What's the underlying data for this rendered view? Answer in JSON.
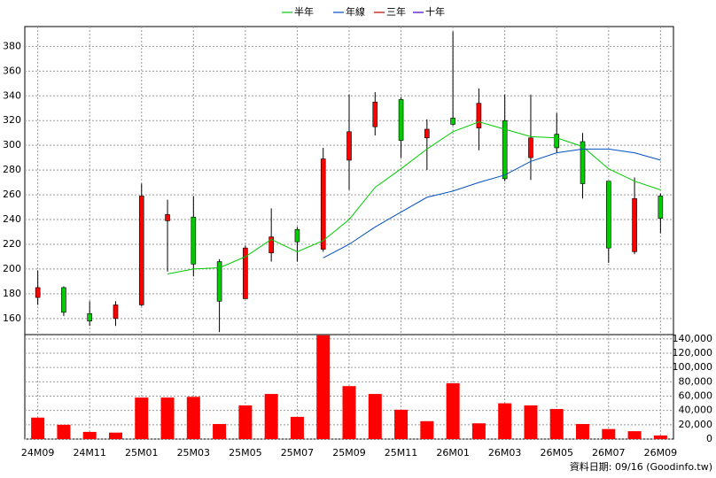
{
  "chart_data": {
    "type": "candlestick",
    "categories": [
      "24M09",
      null,
      "24M11",
      null,
      "25M01",
      null,
      "25M03",
      null,
      "25M05",
      null,
      "25M07",
      null,
      "25M09",
      null,
      "25M11",
      null,
      "26M01",
      null,
      "26M03",
      null,
      "26M05",
      null,
      "26M07",
      null,
      "26M09"
    ],
    "open": [
      177,
      185,
      164,
      160,
      171,
      239,
      242,
      206,
      176,
      213,
      232,
      216,
      288,
      315,
      337,
      306,
      322,
      314,
      320,
      290,
      309,
      303,
      271,
      214,
      259
    ],
    "high": [
      199,
      186,
      174,
      174,
      269,
      256,
      259,
      208,
      219,
      249,
      234,
      298,
      341,
      343,
      339,
      321,
      392,
      346,
      341,
      341,
      326,
      310,
      271,
      274,
      261
    ],
    "low": [
      171,
      162,
      154,
      154,
      170,
      198,
      194,
      149,
      176,
      206,
      206,
      214,
      264,
      308,
      290,
      280,
      316,
      296,
      271,
      272,
      294,
      257,
      205,
      212,
      229
    ],
    "close": [
      185,
      165,
      158,
      171,
      259,
      244,
      204,
      174,
      217,
      226,
      222,
      289,
      311,
      335,
      304,
      313,
      317,
      334,
      273,
      306,
      298,
      269,
      217,
      257,
      241
    ],
    "up_color": "#ff0000",
    "down_color": "#00cc00",
    "series": [
      {
        "name": "半年",
        "color": "#00cc00",
        "values": [
          null,
          null,
          null,
          null,
          null,
          196,
          200,
          201,
          210,
          224,
          214,
          223,
          240,
          266,
          281,
          297,
          311,
          319,
          313,
          307,
          306,
          299,
          281,
          271,
          264
        ]
      },
      {
        "name": "年線",
        "color": "#0050c0",
        "values": [
          null,
          null,
          null,
          null,
          null,
          null,
          null,
          null,
          null,
          null,
          null,
          209,
          220,
          234,
          246,
          258,
          263,
          270,
          276,
          287,
          294,
          297,
          297,
          294,
          288
        ]
      },
      {
        "name": "三年",
        "color": "#c00000",
        "values": [
          null,
          null,
          null,
          null,
          null,
          null,
          null,
          null,
          null,
          null,
          null,
          null,
          null,
          null,
          null,
          null,
          null,
          null,
          null,
          null,
          null,
          null,
          null,
          null,
          null
        ]
      },
      {
        "name": "十年",
        "color": "#4000c0",
        "values": [
          null,
          null,
          null,
          null,
          null,
          null,
          null,
          null,
          null,
          null,
          null,
          null,
          null,
          null,
          null,
          null,
          null,
          null,
          null,
          null,
          null,
          null,
          null,
          null,
          null
        ]
      }
    ],
    "ylim": [
      147,
      396
    ],
    "yticks": [
      160,
      180,
      200,
      220,
      240,
      260,
      280,
      300,
      320,
      340,
      360,
      380
    ],
    "volume": [
      30000,
      20000,
      10000,
      9000,
      58000,
      58000,
      59000,
      21000,
      47000,
      63000,
      31000,
      145000,
      74000,
      63000,
      41000,
      25000,
      78000,
      22000,
      50000,
      47000,
      42000,
      21000,
      14000,
      11000,
      5000
    ],
    "volume_color": "#ff0000",
    "y2lim": [
      0,
      146000
    ],
    "y2ticks": [
      0,
      {
        "value": 20000,
        "label": "20,000"
      },
      {
        "value": 40000,
        "label": "40,000"
      },
      {
        "value": 60000,
        "label": "60,000"
      },
      {
        "value": 80000,
        "label": "80,000"
      },
      {
        "value": 100000,
        "label": "100,000"
      },
      {
        "value": 120000,
        "label": "120,000"
      },
      {
        "value": 140000,
        "label": "140,000"
      }
    ],
    "grid": true,
    "footnote": "資料日期: 09/16 (Goodinfo.tw)"
  }
}
